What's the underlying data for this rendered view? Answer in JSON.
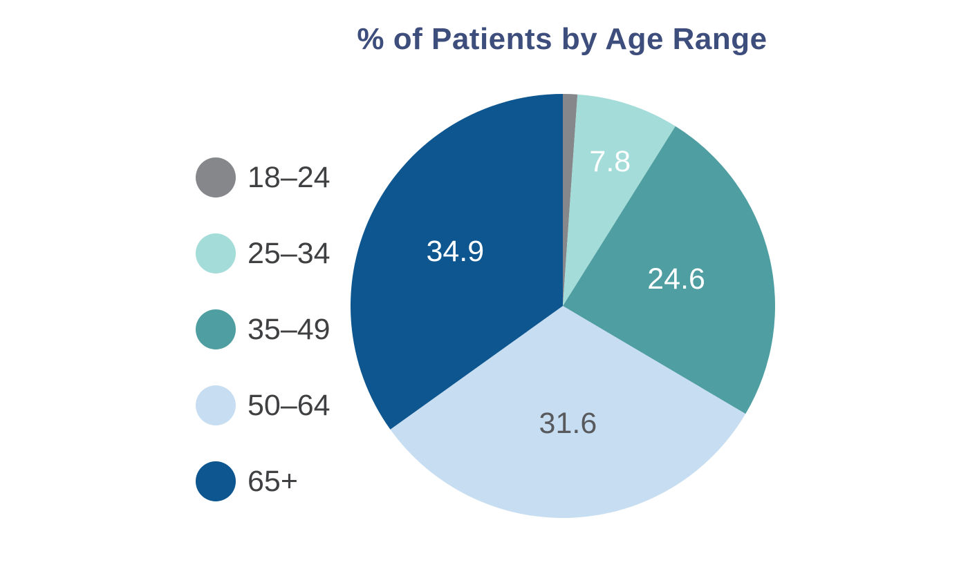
{
  "title": {
    "text": "% of Patients by Age Range",
    "color": "#3e4e7c"
  },
  "chart_data": {
    "type": "pie",
    "title": "% of Patients by Age Range",
    "start_angle": "12 o'clock",
    "direction": "clockwise",
    "legend_position": "left",
    "background_color": "#ffffff",
    "slices": [
      {
        "label": "18–24",
        "value": 1.1,
        "value_label": "",
        "show_value": false,
        "color": "#85878a",
        "value_color": "#ffffff",
        "label_radius": 0.6
      },
      {
        "label": "25–34",
        "value": 7.8,
        "value_label": "7.8",
        "show_value": true,
        "color": "#a4dcd9",
        "value_color": "#ffffff",
        "label_radius": 0.72
      },
      {
        "label": "35–49",
        "value": 24.6,
        "value_label": "24.6",
        "show_value": true,
        "color": "#4f9ea1",
        "value_color": "#ffffff",
        "label_radius": 0.55
      },
      {
        "label": "50–64",
        "value": 31.6,
        "value_label": "31.6",
        "show_value": true,
        "color": "#c7ddf1",
        "value_color": "#58595c",
        "label_radius": 0.55
      },
      {
        "label": "65+",
        "value": 34.9,
        "value_label": "34.9",
        "show_value": true,
        "color": "#0e5690",
        "value_color": "#ffffff",
        "label_radius": 0.57
      }
    ]
  }
}
